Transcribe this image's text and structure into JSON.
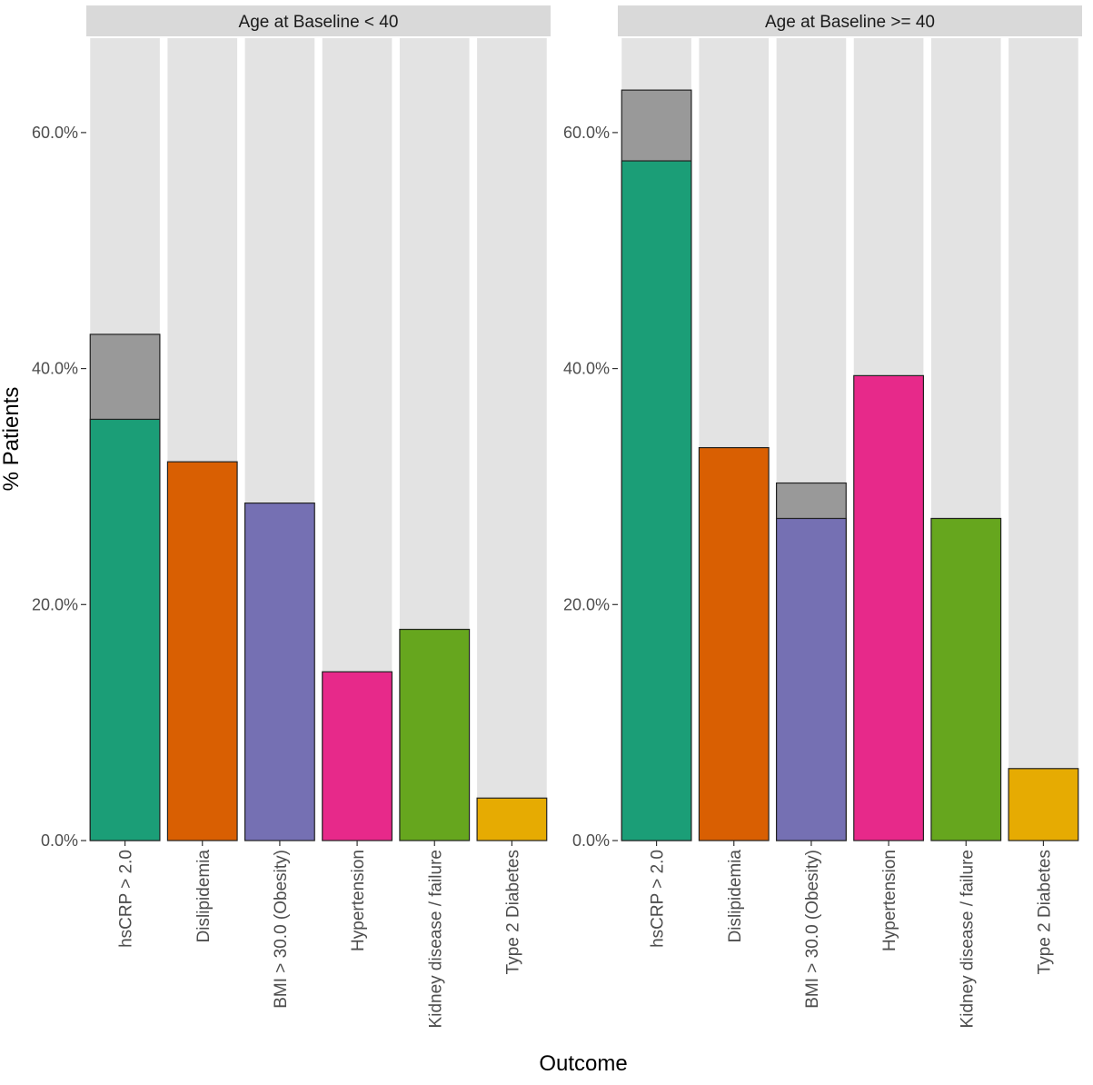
{
  "chart_data": {
    "type": "bar",
    "xlabel": "Outcome",
    "ylabel": "% Patients",
    "ylim": [
      0,
      68
    ],
    "y_ticks": [
      0,
      20,
      40,
      60
    ],
    "y_tick_labels": [
      "0.0%",
      "20.0%",
      "40.0%",
      "60.0%"
    ],
    "background_bar_value": 68,
    "categories": [
      "hsCRP > 2.0",
      "Dislipidemia",
      "BMI > 30.0 (Obesity)",
      "Hypertension",
      "Kidney disease / failure",
      "Type 2 Diabetes"
    ],
    "colors": {
      "hsCRP > 2.0": "#1b9e77",
      "Dislipidemia": "#d95f02",
      "BMI > 30.0 (Obesity)": "#7570b3",
      "Hypertension": "#e7298a",
      "Kidney disease / failure": "#66a61e",
      "Type 2 Diabetes": "#e6ab02",
      "overlay": "#999999",
      "background_bar": "#e3e3e3",
      "strip": "#d9d9d9"
    },
    "panels": [
      {
        "title": "Age at Baseline < 40",
        "values": [
          35.7,
          32.1,
          28.6,
          14.3,
          17.9,
          3.6
        ],
        "overlay_tops": [
          42.9,
          null,
          null,
          null,
          null,
          null
        ]
      },
      {
        "title": "Age at Baseline >= 40",
        "values": [
          57.6,
          33.3,
          27.3,
          39.4,
          27.3,
          6.1
        ],
        "overlay_tops": [
          63.6,
          null,
          30.3,
          null,
          null,
          null
        ]
      }
    ]
  }
}
